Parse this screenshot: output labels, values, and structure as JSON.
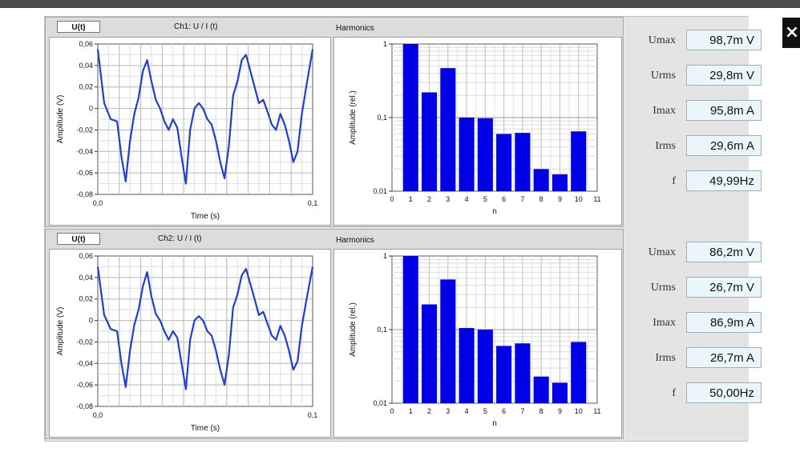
{
  "close": {
    "icon": "close-icon",
    "glyph": "×"
  },
  "channels": [
    {
      "tab": "U(t)",
      "title": "Ch1:  U / I (t)",
      "harmonics_title": "Harmonics",
      "waveform": {
        "ylabel": "Amplitude (V)",
        "xlabel": "Time (s)",
        "yticks": [
          "0,06",
          "0,04",
          "0,02",
          "0",
          "-0,02",
          "-0,04",
          "-0,06",
          "-0,08"
        ],
        "xticks": [
          "0,0",
          "0,1"
        ],
        "color": "#1f3fd0"
      },
      "harmonics": {
        "ylabel": "Amplitude (rel.)",
        "xlabel": "n",
        "yticks": [
          "1",
          "0,1",
          "0,01"
        ],
        "xticks": [
          "0",
          "1",
          "2",
          "3",
          "4",
          "5",
          "6",
          "7",
          "8",
          "9",
          "10",
          "11"
        ],
        "color": "#0000e6"
      },
      "meters": [
        {
          "label": "Umax",
          "value": "98,7m V"
        },
        {
          "label": "Urms",
          "value": "29,8m V"
        },
        {
          "label": "Imax",
          "value": "95,8m A"
        },
        {
          "label": "Irms",
          "value": "29,6m A"
        },
        {
          "label": "f",
          "value": "49,99Hz"
        }
      ]
    },
    {
      "tab": "U(t)",
      "title": "Ch2:  U / I (t)",
      "harmonics_title": "Harmonics",
      "waveform": {
        "ylabel": "Amplitude (V)",
        "xlabel": "Time (s)",
        "yticks": [
          "0,06",
          "0,04",
          "0,02",
          "0",
          "-0,02",
          "-0,04",
          "-0,06",
          "-0,08"
        ],
        "xticks": [
          "0,0",
          "0,1"
        ],
        "color": "#1f3fd0"
      },
      "harmonics": {
        "ylabel": "Amplitude (rel.)",
        "xlabel": "n",
        "yticks": [
          "1",
          "0,1",
          "0,01"
        ],
        "xticks": [
          "0",
          "1",
          "2",
          "3",
          "4",
          "5",
          "6",
          "7",
          "8",
          "9",
          "10",
          "11"
        ],
        "color": "#0000e6"
      },
      "meters": [
        {
          "label": "Umax",
          "value": "86,2m V"
        },
        {
          "label": "Urms",
          "value": "26,7m V"
        },
        {
          "label": "Imax",
          "value": "86,9m A"
        },
        {
          "label": "Irms",
          "value": "26,7m A"
        },
        {
          "label": "f",
          "value": "50,00Hz"
        }
      ]
    }
  ],
  "chart_data": [
    {
      "type": "line",
      "xlabel": "Time (s)",
      "ylabel": "Amplitude (V)",
      "xlim": [
        0,
        0.1
      ],
      "ylim": [
        -0.08,
        0.06
      ],
      "grid": true,
      "series": [
        {
          "x": [
            0,
            0.003,
            0.006,
            0.009,
            0.011,
            0.013,
            0.015,
            0.017,
            0.019,
            0.021,
            0.023,
            0.025,
            0.027,
            0.029,
            0.031,
            0.033,
            0.035,
            0.037,
            0.039,
            0.041,
            0.043,
            0.045,
            0.047,
            0.049,
            0.051,
            0.053,
            0.055,
            0.057,
            0.059,
            0.061,
            0.063,
            0.065,
            0.067,
            0.069,
            0.071,
            0.073,
            0.075,
            0.077,
            0.079,
            0.081,
            0.083,
            0.085,
            0.087,
            0.089,
            0.091,
            0.093,
            0.095,
            0.097,
            0.1
          ],
          "y": [
            0.055,
            0.005,
            -0.01,
            -0.012,
            -0.045,
            -0.068,
            -0.03,
            -0.005,
            0.01,
            0.035,
            0.045,
            0.025,
            0.008,
            0.0,
            -0.012,
            -0.02,
            -0.01,
            -0.018,
            -0.045,
            -0.07,
            -0.02,
            0.0,
            0.005,
            0.0,
            -0.01,
            -0.015,
            -0.03,
            -0.05,
            -0.065,
            -0.035,
            0.012,
            0.025,
            0.045,
            0.05,
            0.035,
            0.02,
            0.005,
            0.008,
            -0.003,
            -0.015,
            -0.02,
            -0.005,
            -0.015,
            -0.03,
            -0.05,
            -0.04,
            -0.005,
            0.02,
            0.055
          ]
        }
      ]
    },
    {
      "type": "bar",
      "log_y": true,
      "xlabel": "n",
      "ylabel": "Amplitude (rel.)",
      "xlim": [
        0,
        11
      ],
      "ylim": [
        0.01,
        1
      ],
      "categories": [
        1,
        2,
        3,
        4,
        5,
        6,
        7,
        8,
        9,
        10
      ],
      "values": [
        1.0,
        0.22,
        0.47,
        0.1,
        0.098,
        0.06,
        0.062,
        0.02,
        0.017,
        0.065
      ]
    },
    {
      "type": "line",
      "xlabel": "Time (s)",
      "ylabel": "Amplitude (V)",
      "xlim": [
        0,
        0.1
      ],
      "ylim": [
        -0.08,
        0.06
      ],
      "grid": true,
      "series": [
        {
          "x": [
            0,
            0.003,
            0.006,
            0.009,
            0.011,
            0.013,
            0.015,
            0.017,
            0.019,
            0.021,
            0.023,
            0.025,
            0.027,
            0.029,
            0.031,
            0.033,
            0.035,
            0.037,
            0.039,
            0.041,
            0.043,
            0.045,
            0.047,
            0.049,
            0.051,
            0.053,
            0.055,
            0.057,
            0.059,
            0.061,
            0.063,
            0.065,
            0.067,
            0.069,
            0.071,
            0.073,
            0.075,
            0.077,
            0.079,
            0.081,
            0.083,
            0.085,
            0.087,
            0.089,
            0.091,
            0.093,
            0.095,
            0.097,
            0.1
          ],
          "y": [
            0.05,
            0.005,
            -0.008,
            -0.01,
            -0.04,
            -0.062,
            -0.028,
            -0.004,
            0.01,
            0.032,
            0.045,
            0.022,
            0.006,
            0.0,
            -0.01,
            -0.018,
            -0.01,
            -0.016,
            -0.04,
            -0.064,
            -0.018,
            0.0,
            0.004,
            0.0,
            -0.01,
            -0.014,
            -0.028,
            -0.046,
            -0.06,
            -0.032,
            0.012,
            0.024,
            0.042,
            0.048,
            0.034,
            0.02,
            0.005,
            0.008,
            -0.003,
            -0.014,
            -0.018,
            -0.005,
            -0.014,
            -0.028,
            -0.046,
            -0.038,
            -0.005,
            0.018,
            0.05
          ]
        }
      ]
    },
    {
      "type": "bar",
      "log_y": true,
      "xlabel": "n",
      "ylabel": "Amplitude (rel.)",
      "xlim": [
        0,
        11
      ],
      "ylim": [
        0.01,
        1
      ],
      "categories": [
        1,
        2,
        3,
        4,
        5,
        6,
        7,
        8,
        9,
        10
      ],
      "values": [
        1.0,
        0.22,
        0.48,
        0.105,
        0.1,
        0.06,
        0.065,
        0.023,
        0.019,
        0.068
      ]
    }
  ]
}
